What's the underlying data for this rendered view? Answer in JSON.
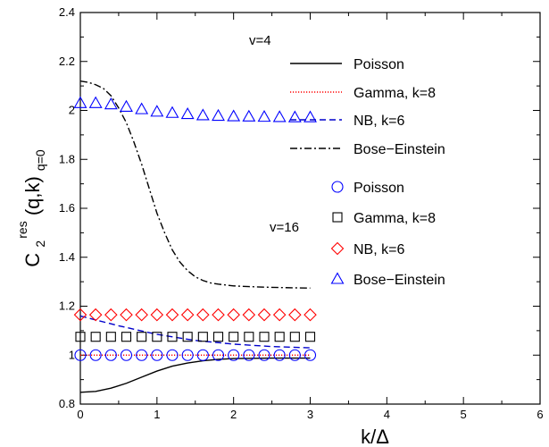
{
  "chart_data": {
    "type": "line",
    "title": "",
    "xlabel": "k/Δ",
    "ylabel": {
      "main": "C",
      "sub": "2",
      "sup": "res",
      "args": "(q,k)",
      "args_sub": "q=0"
    },
    "xlim": [
      0,
      6
    ],
    "ylim": [
      0.8,
      2.4
    ],
    "xticks": [
      0,
      1,
      2,
      3,
      4,
      5,
      6
    ],
    "yticks": [
      0.8,
      1.0,
      1.2,
      1.4,
      1.6,
      1.8,
      2.0,
      2.2,
      2.4
    ],
    "xtick_labels": [
      "0",
      "1",
      "2",
      "3",
      "4",
      "5",
      "6"
    ],
    "ytick_labels": [
      "0.8",
      "1",
      "1.2",
      "1.4",
      "1.6",
      "1.8",
      "2",
      "2.2",
      "2.4"
    ],
    "grid": false,
    "legend_placement": "right",
    "groups": [
      {
        "label": "v=4",
        "style": "lines"
      },
      {
        "label": "v=16",
        "style": "markers"
      }
    ],
    "series": [
      {
        "name": "Poisson",
        "group": "v=4",
        "style": "solid",
        "color": "#000000",
        "x": [
          0,
          0.2,
          0.4,
          0.6,
          0.8,
          1.0,
          1.2,
          1.4,
          1.6,
          1.8,
          2.0,
          2.5,
          3.0
        ],
        "y": [
          0.848,
          0.852,
          0.865,
          0.885,
          0.91,
          0.935,
          0.955,
          0.968,
          0.977,
          0.983,
          0.986,
          0.988,
          0.988
        ]
      },
      {
        "name": "Gamma, k=8",
        "group": "v=4",
        "style": "dotted",
        "color": "#ff0000",
        "x": [
          0,
          3.0
        ],
        "y": [
          1.0,
          1.0
        ]
      },
      {
        "name": "NB, k=6",
        "group": "v=4",
        "style": "dashed",
        "color": "#0000cc",
        "x": [
          0,
          0.5,
          1.0,
          1.5,
          2.0,
          2.5,
          3.0
        ],
        "y": [
          1.16,
          1.12,
          1.085,
          1.06,
          1.045,
          1.035,
          1.03
        ]
      },
      {
        "name": "Bose−Einstein",
        "group": "v=4",
        "style": "dashdot",
        "color": "#000000",
        "x": [
          0,
          0.1,
          0.2,
          0.3,
          0.4,
          0.5,
          0.6,
          0.7,
          0.8,
          0.9,
          1.0,
          1.1,
          1.2,
          1.3,
          1.4,
          1.5,
          1.6,
          1.7,
          1.8,
          2.0,
          2.2,
          2.5,
          2.8,
          3.0
        ],
        "y": [
          2.12,
          2.115,
          2.105,
          2.09,
          2.06,
          2.01,
          1.95,
          1.87,
          1.78,
          1.68,
          1.58,
          1.5,
          1.43,
          1.38,
          1.345,
          1.32,
          1.305,
          1.295,
          1.29,
          1.283,
          1.28,
          1.277,
          1.275,
          1.274
        ]
      },
      {
        "name": "Poisson",
        "group": "v=16",
        "style": "marker-circle",
        "color": "#0000ff",
        "x": [
          0,
          0.2,
          0.4,
          0.6,
          0.8,
          1.0,
          1.2,
          1.4,
          1.6,
          1.8,
          2.0,
          2.2,
          2.4,
          2.6,
          2.8,
          3.0
        ],
        "y": [
          1.0,
          1.0,
          1.0,
          1.0,
          1.0,
          1.0,
          1.0,
          1.0,
          1.0,
          1.0,
          1.0,
          1.0,
          1.0,
          1.0,
          1.0,
          1.0
        ]
      },
      {
        "name": "Gamma, k=8",
        "group": "v=16",
        "style": "marker-square",
        "color": "#000000",
        "x": [
          0,
          0.2,
          0.4,
          0.6,
          0.8,
          1.0,
          1.2,
          1.4,
          1.6,
          1.8,
          2.0,
          2.2,
          2.4,
          2.6,
          2.8,
          3.0
        ],
        "y": [
          1.075,
          1.075,
          1.075,
          1.075,
          1.075,
          1.075,
          1.075,
          1.075,
          1.075,
          1.075,
          1.075,
          1.075,
          1.075,
          1.075,
          1.075,
          1.075
        ]
      },
      {
        "name": "NB, k=6",
        "group": "v=16",
        "style": "marker-diamond",
        "color": "#ff0000",
        "x": [
          0,
          0.2,
          0.4,
          0.6,
          0.8,
          1.0,
          1.2,
          1.4,
          1.6,
          1.8,
          2.0,
          2.2,
          2.4,
          2.6,
          2.8,
          3.0
        ],
        "y": [
          1.165,
          1.165,
          1.165,
          1.165,
          1.165,
          1.165,
          1.165,
          1.165,
          1.165,
          1.165,
          1.165,
          1.165,
          1.165,
          1.165,
          1.165,
          1.165
        ]
      },
      {
        "name": "Bose−Einstein",
        "group": "v=16",
        "style": "marker-triangle",
        "color": "#0000ff",
        "x": [
          0,
          0.2,
          0.4,
          0.6,
          0.8,
          1.0,
          1.2,
          1.4,
          1.6,
          1.8,
          2.0,
          2.2,
          2.4,
          2.6,
          2.8,
          3.0
        ],
        "y": [
          2.03,
          2.03,
          2.025,
          2.015,
          2.005,
          1.995,
          1.99,
          1.985,
          1.98,
          1.978,
          1.976,
          1.975,
          1.974,
          1.973,
          1.972,
          1.972
        ]
      }
    ]
  }
}
